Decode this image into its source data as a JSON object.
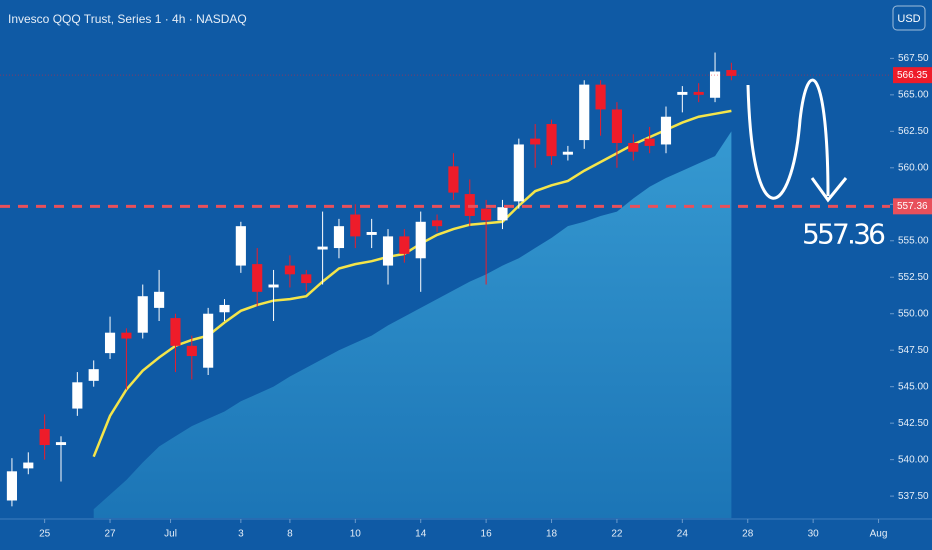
{
  "chart_data": {
    "type": "candlestick",
    "title": "Invesco QQQ Trust, Series 1 · 4h · NASDAQ",
    "currency": "USD",
    "up_color": "#ffffff",
    "down_color": "#ee1c2a",
    "open": [
      537.2,
      539.4,
      542.1,
      541.0,
      543.5,
      545.4,
      547.3,
      548.7,
      548.7,
      550.4,
      549.7,
      547.8,
      546.3,
      550.1,
      553.3,
      553.4,
      551.8,
      553.3,
      552.7,
      554.4,
      554.5,
      556.8,
      555.4,
      553.3,
      555.3,
      553.8,
      556.4,
      560.1,
      558.2,
      557.2,
      556.4,
      557.7,
      562.0,
      563.0,
      560.9,
      561.9,
      565.7,
      564.0,
      561.7,
      562.0,
      561.6,
      565.0,
      565.2,
      564.8,
      566.7
    ],
    "high": [
      540.1,
      540.5,
      543.1,
      541.6,
      546.0,
      546.8,
      549.8,
      549.0,
      552.0,
      553.0,
      550.0,
      548.5,
      550.4,
      551.0,
      556.3,
      554.5,
      553.0,
      554.0,
      553.0,
      557.0,
      556.5,
      557.5,
      556.5,
      555.8,
      555.8,
      557.0,
      556.8,
      561.0,
      559.2,
      557.8,
      557.8,
      562.0,
      563.0,
      563.3,
      561.5,
      566.0,
      566.0,
      564.5,
      562.3,
      562.8,
      564.2,
      565.6,
      565.8,
      567.9,
      567.2
    ],
    "low": [
      536.8,
      539.0,
      540.0,
      538.5,
      543.0,
      545.0,
      546.9,
      544.8,
      548.3,
      549.5,
      546.0,
      545.5,
      545.8,
      549.5,
      552.8,
      550.5,
      549.5,
      551.8,
      551.5,
      552.0,
      553.8,
      554.5,
      554.5,
      552.0,
      553.5,
      551.5,
      555.6,
      557.8,
      556.0,
      552.0,
      555.8,
      557.2,
      560.0,
      560.2,
      560.5,
      561.3,
      562.2,
      560.0,
      560.5,
      561.0,
      561.0,
      563.8,
      564.5,
      564.5,
      566.0
    ],
    "close": [
      539.2,
      539.8,
      541.0,
      541.2,
      545.3,
      546.2,
      548.7,
      548.3,
      551.2,
      551.5,
      547.8,
      547.1,
      550.0,
      550.6,
      556.0,
      551.5,
      552.0,
      552.7,
      552.1,
      554.6,
      556.0,
      555.3,
      555.6,
      555.3,
      554.1,
      556.3,
      556.0,
      558.3,
      556.7,
      556.4,
      557.3,
      561.6,
      561.6,
      560.8,
      561.1,
      565.7,
      564.0,
      561.7,
      561.1,
      561.5,
      563.5,
      565.2,
      565.0,
      566.6,
      566.3
    ],
    "series": [
      {
        "type": "area",
        "color": "#2b8ec6",
        "values": [
          null,
          null,
          null,
          null,
          null,
          536.6,
          537.6,
          538.6,
          539.8,
          540.9,
          541.6,
          542.3,
          542.8,
          543.3,
          544.0,
          544.5,
          545.0,
          545.7,
          546.3,
          546.9,
          547.5,
          548.0,
          548.5,
          549.2,
          549.8,
          550.4,
          551.0,
          551.6,
          552.2,
          552.7,
          553.3,
          553.8,
          554.5,
          555.2,
          556.0,
          556.3,
          556.7,
          557.0,
          557.9,
          558.7,
          559.3,
          559.8,
          560.3,
          560.8,
          562.5
        ]
      },
      {
        "type": "line",
        "color": "#f4e54a",
        "values": [
          null,
          null,
          null,
          null,
          null,
          540.2,
          543.0,
          544.8,
          546.1,
          547.0,
          547.8,
          548.2,
          548.5,
          549.4,
          550.2,
          550.6,
          550.9,
          551.0,
          551.2,
          552.2,
          553.1,
          553.4,
          553.6,
          553.9,
          554.1,
          554.8,
          555.4,
          555.8,
          556.1,
          556.2,
          556.3,
          557.4,
          558.4,
          558.8,
          559.1,
          559.8,
          560.4,
          561.0,
          561.6,
          562.1,
          562.6,
          563.1,
          563.5,
          563.7,
          563.9
        ]
      }
    ],
    "xlim": [
      -0.73,
      53.7
    ],
    "xticks": [
      {
        "value": 2,
        "label": "25"
      },
      {
        "value": 6,
        "label": "27"
      },
      {
        "value": 9.7,
        "label": "Jul"
      },
      {
        "value": 14,
        "label": "3"
      },
      {
        "value": 17,
        "label": "8"
      },
      {
        "value": 21,
        "label": "10"
      },
      {
        "value": 25,
        "label": "14"
      },
      {
        "value": 29,
        "label": "16"
      },
      {
        "value": 33,
        "label": "18"
      },
      {
        "value": 37,
        "label": "22"
      },
      {
        "value": 41,
        "label": "24"
      },
      {
        "value": 45,
        "label": "28"
      },
      {
        "value": 49,
        "label": "30"
      },
      {
        "value": 53,
        "label": "Aug"
      }
    ],
    "ylim": [
      536,
      571.5
    ],
    "yticks": [
      {
        "value": 537.5,
        "label": "537.50"
      },
      {
        "value": 540,
        "label": "540.00"
      },
      {
        "value": 542.5,
        "label": "542.50"
      },
      {
        "value": 545,
        "label": "545.00"
      },
      {
        "value": 547.5,
        "label": "547.50"
      },
      {
        "value": 550,
        "label": "550.00"
      },
      {
        "value": 552.5,
        "label": "552.50"
      },
      {
        "value": 555,
        "label": "555.00"
      },
      {
        "value": 557.5,
        "label": "557.50"
      },
      {
        "value": 560,
        "label": "560.00"
      },
      {
        "value": 562.5,
        "label": "562.50"
      },
      {
        "value": 565,
        "label": "565.00"
      },
      {
        "value": 567.5,
        "label": "567.50"
      }
    ],
    "level": 557.36,
    "level_color": "#e8505b",
    "last_price": 566.35
  }
}
